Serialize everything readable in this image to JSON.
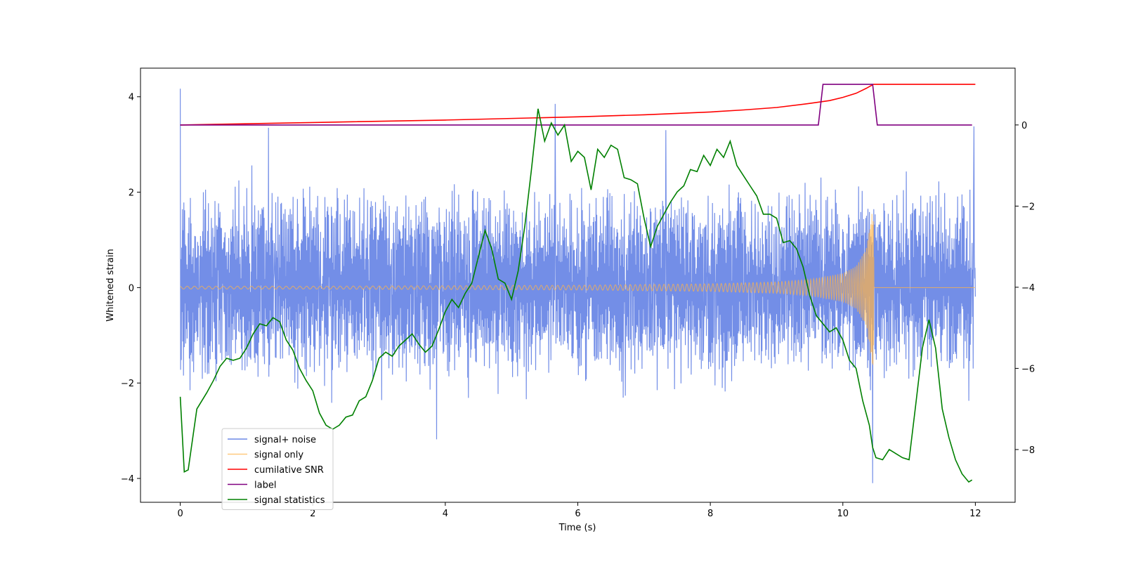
{
  "chart_data": {
    "type": "line",
    "title": "",
    "xlabel": "Time (s)",
    "ylabel": "Whitened strain",
    "y2label": "",
    "xlim": [
      -0.6,
      12.6
    ],
    "ylim": [
      -4.5,
      4.6
    ],
    "y2lim": [
      -9.3,
      1.4
    ],
    "x_ticks": [
      0,
      2,
      4,
      6,
      8,
      10,
      12
    ],
    "y_ticks": [
      -4,
      -2,
      0,
      2,
      4
    ],
    "y2_ticks": [
      0,
      -2,
      -4,
      -6,
      -8
    ],
    "grid": false,
    "legend_position": "lower-left",
    "colors": {
      "noise": "#6b88e6",
      "signal": "#ffb347",
      "snr": "#ff0000",
      "label": "#800080",
      "stat": "#008000"
    },
    "series": [
      {
        "name": "signal+ noise",
        "axis": "left",
        "kind": "noise_band",
        "x_range": [
          0,
          12
        ],
        "typical_range": [
          -1.6,
          1.8
        ],
        "peaks": [
          {
            "x": 0.0,
            "y": 4.17
          },
          {
            "x": 1.33,
            "y": 3.35
          },
          {
            "x": 3.87,
            "y": -3.18
          },
          {
            "x": 5.66,
            "y": 3.85
          },
          {
            "x": 7.33,
            "y": 3.3
          },
          {
            "x": 10.45,
            "y": -4.1
          },
          {
            "x": 11.98,
            "y": 3.38
          }
        ]
      },
      {
        "name": "signal only",
        "axis": "left",
        "kind": "chirp",
        "x": [
          0,
          2,
          4,
          6,
          8,
          9,
          9.5,
          10,
          10.2,
          10.35,
          10.42,
          10.46,
          10.47,
          12
        ],
        "amplitude": [
          0.03,
          0.03,
          0.04,
          0.05,
          0.08,
          0.12,
          0.17,
          0.3,
          0.45,
          0.8,
          1.4,
          1.9,
          0.0,
          0.0
        ]
      },
      {
        "name": "cumilative SNR",
        "axis": "right",
        "x": [
          0,
          2,
          4,
          6,
          7,
          8,
          8.5,
          9,
          9.5,
          9.8,
          10.0,
          10.2,
          10.35,
          10.46,
          10.47,
          12
        ],
        "y": [
          0.0,
          0.06,
          0.12,
          0.2,
          0.25,
          0.32,
          0.37,
          0.43,
          0.53,
          0.6,
          0.68,
          0.78,
          0.9,
          1.0,
          1.0,
          1.0
        ]
      },
      {
        "name": "label",
        "axis": "right",
        "x": [
          0,
          9.63,
          9.7,
          10.45,
          10.52,
          11.95
        ],
        "y": [
          0,
          0,
          1,
          1,
          0,
          0
        ]
      },
      {
        "name": "signal statistics",
        "axis": "right",
        "x": [
          0,
          0.06,
          0.12,
          0.25,
          0.4,
          0.5,
          0.6,
          0.7,
          0.8,
          0.9,
          1.0,
          1.1,
          1.2,
          1.3,
          1.4,
          1.5,
          1.6,
          1.7,
          1.8,
          1.9,
          2.0,
          2.1,
          2.2,
          2.3,
          2.4,
          2.5,
          2.6,
          2.7,
          2.8,
          2.9,
          3.0,
          3.1,
          3.2,
          3.3,
          3.4,
          3.5,
          3.6,
          3.7,
          3.8,
          3.9,
          4.0,
          4.1,
          4.2,
          4.3,
          4.4,
          4.5,
          4.6,
          4.7,
          4.8,
          4.9,
          5.0,
          5.1,
          5.2,
          5.3,
          5.4,
          5.5,
          5.6,
          5.7,
          5.8,
          5.9,
          6.0,
          6.1,
          6.2,
          6.3,
          6.4,
          6.5,
          6.6,
          6.7,
          6.8,
          6.9,
          7.0,
          7.1,
          7.2,
          7.3,
          7.4,
          7.5,
          7.6,
          7.7,
          7.8,
          7.9,
          8.0,
          8.1,
          8.2,
          8.3,
          8.4,
          8.5,
          8.6,
          8.7,
          8.8,
          8.9,
          9.0,
          9.1,
          9.2,
          9.3,
          9.4,
          9.5,
          9.6,
          9.7,
          9.8,
          9.9,
          10.0,
          10.1,
          10.2,
          10.3,
          10.4,
          10.45,
          10.5,
          10.6,
          10.7,
          10.8,
          10.9,
          11.0,
          11.1,
          11.2,
          11.3,
          11.4,
          11.5,
          11.6,
          11.7,
          11.8,
          11.9,
          11.95
        ],
        "y": [
          -6.7,
          -8.55,
          -8.5,
          -7.0,
          -6.6,
          -6.3,
          -5.95,
          -5.75,
          -5.8,
          -5.75,
          -5.5,
          -5.15,
          -4.9,
          -4.95,
          -4.75,
          -4.85,
          -5.3,
          -5.55,
          -6.0,
          -6.3,
          -6.55,
          -7.1,
          -7.4,
          -7.5,
          -7.4,
          -7.2,
          -7.15,
          -6.8,
          -6.7,
          -6.3,
          -5.75,
          -5.6,
          -5.7,
          -5.45,
          -5.3,
          -5.15,
          -5.4,
          -5.6,
          -5.45,
          -5.05,
          -4.6,
          -4.3,
          -4.5,
          -4.15,
          -3.9,
          -3.25,
          -2.6,
          -3.05,
          -3.8,
          -3.9,
          -4.3,
          -3.6,
          -2.5,
          -1.1,
          0.4,
          -0.4,
          0.05,
          -0.25,
          0.0,
          -0.9,
          -0.65,
          -0.8,
          -1.6,
          -0.6,
          -0.8,
          -0.5,
          -0.6,
          -1.3,
          -1.35,
          -1.45,
          -2.3,
          -3.0,
          -2.5,
          -2.2,
          -1.9,
          -1.65,
          -1.5,
          -1.1,
          -1.15,
          -0.75,
          -1.0,
          -0.6,
          -0.8,
          -0.4,
          -1.0,
          -1.25,
          -1.5,
          -1.75,
          -2.2,
          -2.2,
          -2.3,
          -2.9,
          -2.85,
          -3.05,
          -3.5,
          -4.2,
          -4.7,
          -4.9,
          -5.1,
          -5.0,
          -5.3,
          -5.8,
          -6.0,
          -6.8,
          -7.4,
          -7.95,
          -8.2,
          -8.25,
          -8.0,
          -8.1,
          -8.2,
          -8.25,
          -6.9,
          -5.5,
          -4.8,
          -5.5,
          -7.0,
          -7.7,
          -8.25,
          -8.6,
          -8.8,
          -8.75
        ]
      }
    ]
  }
}
